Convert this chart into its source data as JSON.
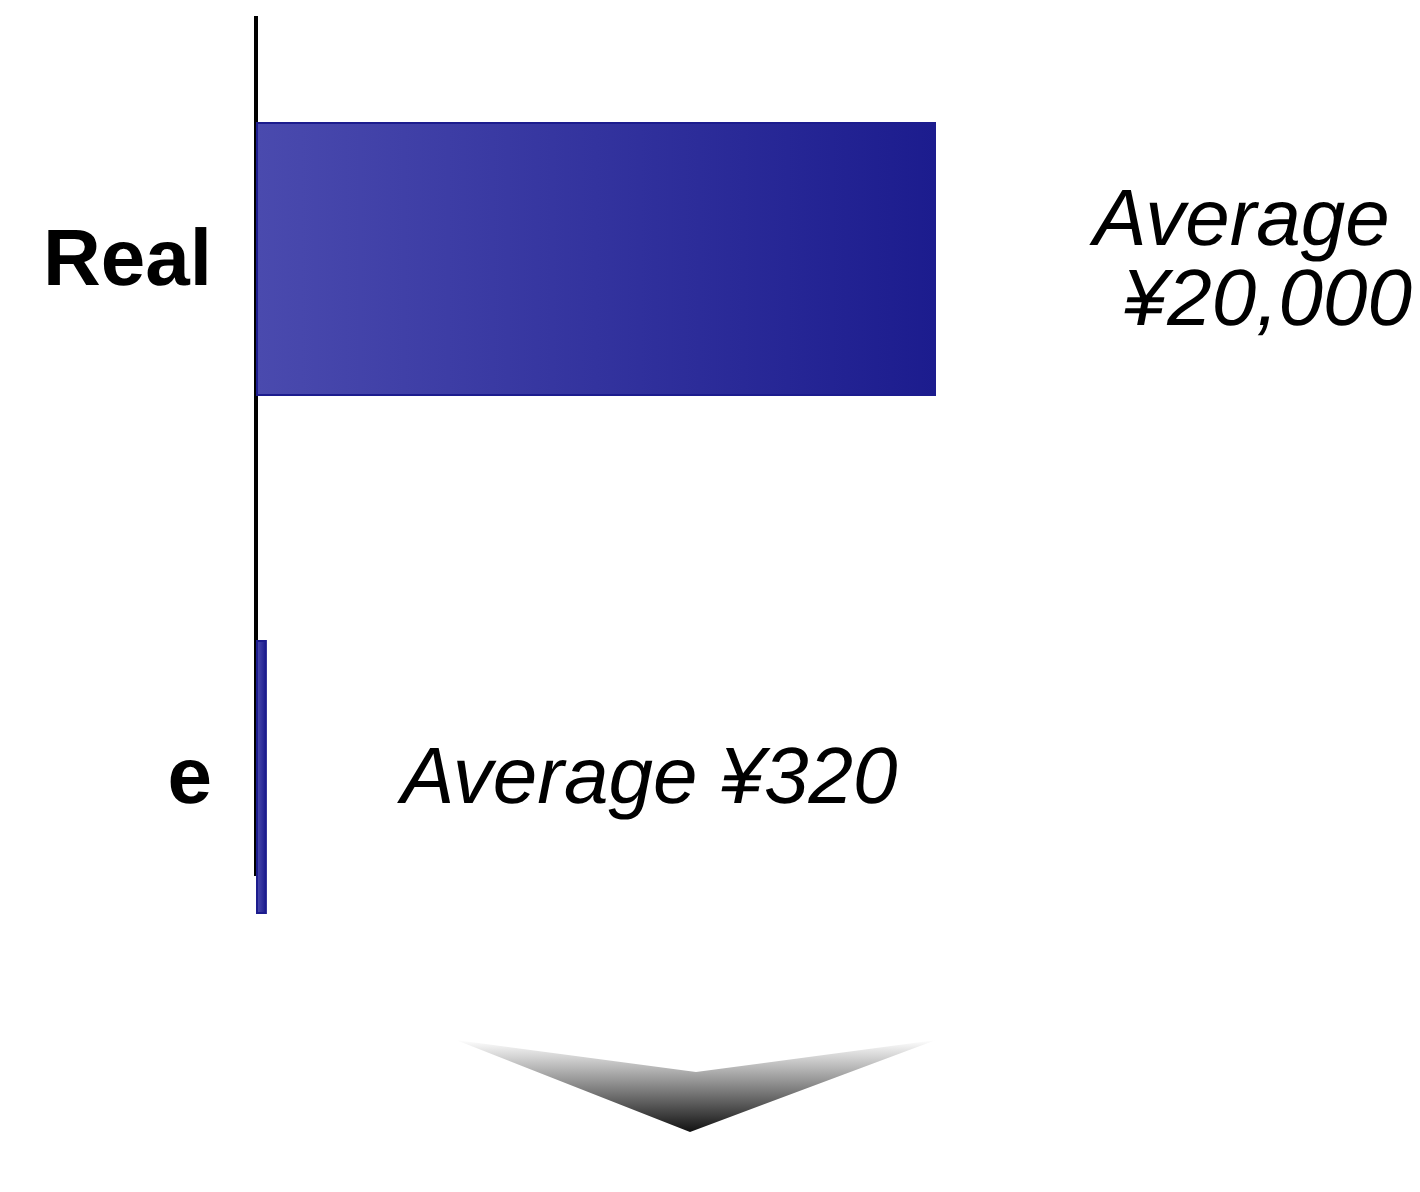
{
  "chart_data": {
    "type": "bar",
    "orientation": "horizontal",
    "categories": [
      "Real",
      "e"
    ],
    "values": [
      20000,
      320
    ],
    "value_labels": [
      "Average ¥20,000",
      "Average ¥320"
    ],
    "color": "#1c1c8e"
  }
}
